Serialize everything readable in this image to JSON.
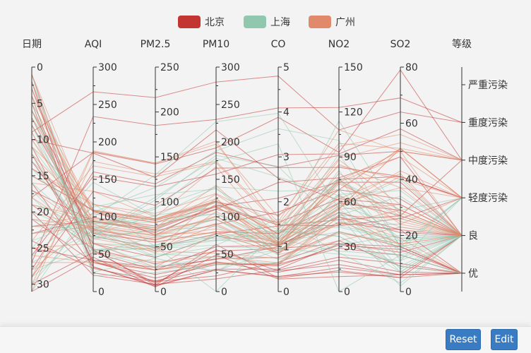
{
  "chart_data": {
    "type": "parallel",
    "legend": [
      {
        "name": "北京",
        "color": "#c23531"
      },
      {
        "name": "上海",
        "color": "#91c7ae"
      },
      {
        "name": "广州",
        "color": "#e08a6b"
      }
    ],
    "axes": [
      {
        "name": "日期",
        "min": 0,
        "max": 31,
        "inverse": true,
        "ticks": [
          0,
          5,
          10,
          15,
          20,
          25,
          30
        ]
      },
      {
        "name": "AQI",
        "min": 0,
        "max": 300,
        "ticks": [
          0,
          50,
          100,
          150,
          200,
          250,
          300
        ]
      },
      {
        "name": "PM2.5",
        "min": 0,
        "max": 250,
        "ticks": [
          0,
          50,
          100,
          150,
          200,
          250
        ]
      },
      {
        "name": "PM10",
        "min": 0,
        "max": 300,
        "ticks": [
          0,
          50,
          100,
          150,
          200,
          250,
          300
        ]
      },
      {
        "name": "CO",
        "min": 0,
        "max": 5,
        "ticks": [
          0,
          1,
          2,
          3,
          4,
          5
        ]
      },
      {
        "name": "NO2",
        "min": 0,
        "max": 150,
        "ticks": [
          0,
          30,
          60,
          90,
          120,
          150
        ]
      },
      {
        "name": "SO2",
        "min": 0,
        "max": 80,
        "ticks": [
          0,
          20,
          40,
          60,
          80
        ]
      },
      {
        "name": "等级",
        "categorical": true,
        "categories": [
          "优",
          "良",
          "轻度污染",
          "中度污染",
          "重度污染",
          "严重污染"
        ]
      }
    ],
    "series": [
      {
        "name": "北京",
        "data": [
          [
            1,
            55,
            9,
            56,
            0.46,
            18,
            6,
            "良"
          ],
          [
            2,
            25,
            11,
            21,
            0.65,
            34,
            9,
            "优"
          ],
          [
            3,
            56,
            7,
            63,
            0.3,
            14,
            5,
            "良"
          ],
          [
            4,
            33,
            7,
            29,
            0.33,
            16,
            6,
            "优"
          ],
          [
            5,
            42,
            24,
            44,
            0.76,
            40,
            16,
            "优"
          ],
          [
            6,
            82,
            58,
            90,
            1.77,
            68,
            33,
            "良"
          ],
          [
            7,
            74,
            49,
            77,
            1.46,
            48,
            27,
            "良"
          ],
          [
            8,
            78,
            55,
            80,
            1.29,
            59,
            29,
            "良"
          ],
          [
            9,
            267,
            216,
            280,
            4.8,
            108,
            64,
            "重度污染"
          ],
          [
            10,
            185,
            127,
            216,
            2.52,
            61,
            27,
            "中度污染"
          ],
          [
            11,
            39,
            19,
            38,
            0.57,
            31,
            15,
            "优"
          ],
          [
            12,
            41,
            11,
            40,
            0.43,
            21,
            7,
            "优"
          ],
          [
            13,
            64,
            38,
            74,
            1.04,
            46,
            22,
            "良"
          ],
          [
            14,
            108,
            79,
            120,
            1.7,
            75,
            41,
            "轻度污染"
          ],
          [
            15,
            108,
            63,
            116,
            1.48,
            44,
            26,
            "轻度污染"
          ],
          [
            16,
            33,
            6,
            29,
            0.34,
            13,
            5,
            "优"
          ],
          [
            17,
            94,
            66,
            110,
            1.54,
            62,
            31,
            "良"
          ],
          [
            18,
            186,
            142,
            192,
            3.88,
            93,
            79,
            "中度污染"
          ],
          [
            19,
            57,
            31,
            54,
            0.96,
            32,
            14,
            "良"
          ],
          [
            20,
            22,
            8,
            17,
            0.48,
            23,
            10,
            "优"
          ],
          [
            21,
            39,
            15,
            36,
            0.61,
            29,
            13,
            "优"
          ],
          [
            22,
            94,
            69,
            114,
            2.08,
            73,
            39,
            "良"
          ],
          [
            23,
            99,
            73,
            110,
            2.43,
            76,
            48,
            "良"
          ],
          [
            24,
            31,
            12,
            30,
            0.5,
            32,
            16,
            "优"
          ],
          [
            25,
            42,
            27,
            43,
            1,
            53,
            22,
            "优"
          ],
          [
            26,
            154,
            117,
            157,
            3.05,
            92,
            58,
            "中度污染"
          ],
          [
            27,
            234,
            185,
            230,
            4.09,
            123,
            69,
            "重度污染"
          ],
          [
            28,
            160,
            120,
            186,
            2.77,
            91,
            50,
            "中度污染"
          ],
          [
            29,
            134,
            96,
            165,
            2.76,
            83,
            41,
            "轻度污染"
          ],
          [
            30,
            52,
            24,
            60,
            1.03,
            50,
            21,
            "良"
          ],
          [
            31,
            46,
            5,
            49,
            0.28,
            10,
            6,
            "优"
          ]
        ]
      },
      {
        "name": "上海",
        "data": [
          [
            1,
            26,
            37,
            27,
            1.163,
            27,
            13,
            "优"
          ],
          [
            2,
            85,
            62,
            71,
            1.195,
            60,
            8,
            "良"
          ],
          [
            3,
            78,
            38,
            74,
            1.363,
            37,
            7,
            "良"
          ],
          [
            4,
            21,
            21,
            36,
            0.634,
            40,
            9,
            "优"
          ],
          [
            5,
            41,
            42,
            46,
            0.915,
            81,
            13,
            "优"
          ],
          [
            6,
            56,
            52,
            69,
            1.067,
            92,
            16,
            "良"
          ],
          [
            7,
            64,
            30,
            28,
            0.924,
            51,
            2,
            "良"
          ],
          [
            8,
            55,
            48,
            74,
            1.236,
            75,
            26,
            "良"
          ],
          [
            9,
            76,
            85,
            113,
            1.237,
            114,
            27,
            "良"
          ],
          [
            10,
            91,
            81,
            104,
            1.041,
            56,
            40,
            "良"
          ],
          [
            11,
            84,
            39,
            60,
            0.964,
            25,
            11,
            "良"
          ],
          [
            12,
            64,
            51,
            101,
            0.862,
            58,
            23,
            "良"
          ],
          [
            13,
            70,
            69,
            120,
            1.198,
            65,
            36,
            "良"
          ],
          [
            14,
            77,
            105,
            178,
            2.549,
            64,
            16,
            "良"
          ],
          [
            15,
            109,
            68,
            87,
            0.996,
            74,
            29,
            "轻度污染"
          ],
          [
            16,
            73,
            68,
            97,
            0.905,
            51,
            34,
            "良"
          ],
          [
            17,
            54,
            27,
            47,
            0.592,
            53,
            12,
            "良"
          ],
          [
            18,
            51,
            61,
            97,
            0.811,
            65,
            19,
            "良"
          ],
          [
            19,
            91,
            71,
            121,
            1.374,
            43,
            18,
            "良"
          ],
          [
            20,
            73,
            102,
            182,
            2.787,
            44,
            19,
            "良"
          ],
          [
            21,
            73,
            50,
            76,
            0.717,
            31,
            20,
            "良"
          ],
          [
            22,
            84,
            94,
            140,
            2.238,
            68,
            18,
            "良"
          ],
          [
            23,
            93,
            77,
            104,
            1.165,
            53,
            7,
            "良"
          ],
          [
            24,
            99,
            130,
            227,
            3.97,
            55,
            15,
            "良"
          ],
          [
            25,
            146,
            84,
            139,
            1.094,
            40,
            17,
            "轻度污染"
          ],
          [
            26,
            113,
            108,
            137,
            1.481,
            48,
            15,
            "轻度污染"
          ],
          [
            27,
            81,
            48,
            62,
            1.619,
            26,
            3,
            "良"
          ],
          [
            28,
            56,
            48,
            68,
            1.336,
            37,
            9,
            "良"
          ],
          [
            29,
            82,
            92,
            174,
            3.29,
            0,
            13,
            "良"
          ],
          [
            30,
            106,
            116,
            188,
            3.628,
            101,
            16,
            "轻度污染"
          ],
          [
            31,
            118,
            50,
            0,
            1.383,
            76,
            11,
            "轻度污染"
          ]
        ]
      },
      {
        "name": "广州",
        "data": [
          [
            1,
            91,
            45,
            125,
            0.82,
            34,
            23,
            "良"
          ],
          [
            2,
            65,
            27,
            78,
            0.86,
            45,
            29,
            "良"
          ],
          [
            3,
            83,
            60,
            84,
            1.09,
            73,
            27,
            "良"
          ],
          [
            4,
            109,
            81,
            121,
            1.28,
            68,
            51,
            "轻度污染"
          ],
          [
            5,
            106,
            77,
            114,
            1.07,
            55,
            51,
            "轻度污染"
          ],
          [
            6,
            109,
            81,
            121,
            1.28,
            68,
            51,
            "轻度污染"
          ],
          [
            7,
            106,
            77,
            114,
            1.07,
            55,
            51,
            "轻度污染"
          ],
          [
            8,
            89,
            65,
            78,
            0.86,
            51,
            26,
            "良"
          ],
          [
            9,
            53,
            33,
            47,
            0.64,
            50,
            17,
            "良"
          ],
          [
            10,
            80,
            55,
            80,
            1.01,
            75,
            24,
            "良"
          ],
          [
            11,
            117,
            81,
            124,
            1.03,
            45,
            24,
            "轻度污染"
          ],
          [
            12,
            99,
            71,
            142,
            1.1,
            62,
            42,
            "良"
          ],
          [
            13,
            95,
            69,
            130,
            1.28,
            74,
            50,
            "良"
          ],
          [
            14,
            116,
            87,
            131,
            1.47,
            84,
            40,
            "轻度污染"
          ],
          [
            15,
            108,
            80,
            121,
            1.3,
            85,
            37,
            "轻度污染"
          ],
          [
            16,
            134,
            83,
            167,
            1.16,
            57,
            43,
            "轻度污染"
          ],
          [
            17,
            79,
            43,
            107,
            1.05,
            59,
            37,
            "良"
          ],
          [
            18,
            71,
            46,
            89,
            0.86,
            64,
            25,
            "良"
          ],
          [
            19,
            97,
            71,
            113,
            1.17,
            88,
            31,
            "良"
          ],
          [
            20,
            84,
            57,
            91,
            0.85,
            55,
            31,
            "良"
          ],
          [
            21,
            87,
            63,
            101,
            0.9,
            56,
            41,
            "良"
          ],
          [
            22,
            104,
            77,
            119,
            1.09,
            73,
            48,
            "轻度污染"
          ],
          [
            23,
            87,
            62,
            100,
            1,
            72,
            28,
            "良"
          ],
          [
            24,
            168,
            128,
            172,
            1.49,
            97,
            56,
            "中度污染"
          ],
          [
            25,
            65,
            45,
            51,
            0.74,
            39,
            17,
            "良"
          ],
          [
            26,
            39,
            24,
            38,
            0.61,
            47,
            17,
            "优"
          ],
          [
            27,
            39,
            24,
            39,
            0.59,
            50,
            19,
            "优"
          ],
          [
            28,
            93,
            68,
            96,
            1.05,
            79,
            29,
            "良"
          ],
          [
            29,
            188,
            143,
            197,
            1.66,
            99,
            51,
            "中度污染"
          ],
          [
            30,
            174,
            131,
            174,
            1.55,
            108,
            50,
            "中度污染"
          ],
          [
            31,
            187,
            143,
            201,
            1.39,
            89,
            53,
            "中度污染"
          ]
        ]
      }
    ]
  },
  "buttons": {
    "reset": "Reset",
    "edit": "Edit"
  }
}
